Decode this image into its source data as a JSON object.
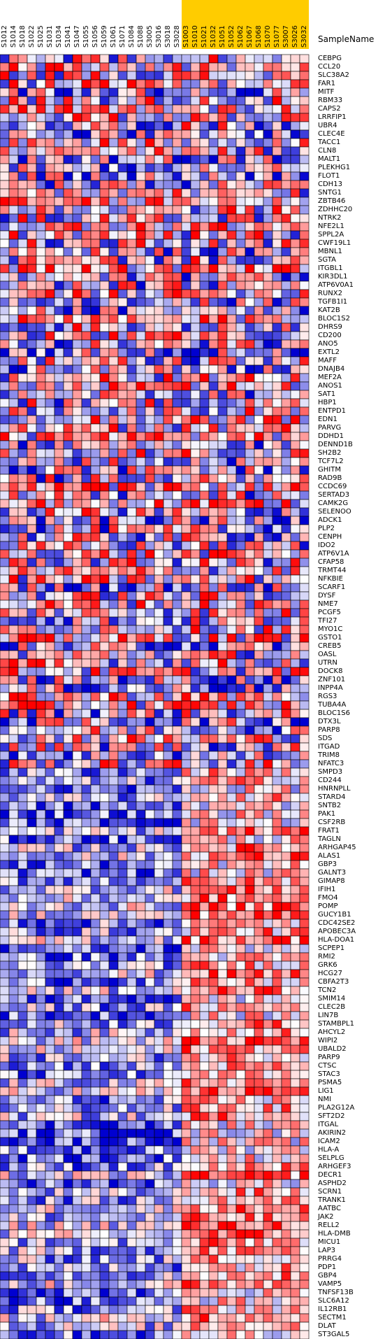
{
  "header_label": "SampleName",
  "colors": {
    "low": "#0000d0",
    "mid": "#ffffff",
    "high": "#ff0000",
    "highlight_col_bg": "#ffcc00",
    "grid": "#000000"
  },
  "chart_data": {
    "type": "heatmap",
    "columns": [
      {
        "name": "S1012",
        "group": "A"
      },
      {
        "name": "S1014",
        "group": "A"
      },
      {
        "name": "S1018",
        "group": "A"
      },
      {
        "name": "S1022",
        "group": "A"
      },
      {
        "name": "S1025",
        "group": "A"
      },
      {
        "name": "S1031",
        "group": "A"
      },
      {
        "name": "S1034",
        "group": "A"
      },
      {
        "name": "S1041",
        "group": "A"
      },
      {
        "name": "S1047",
        "group": "A"
      },
      {
        "name": "S1055",
        "group": "A"
      },
      {
        "name": "S1056",
        "group": "A"
      },
      {
        "name": "S1059",
        "group": "A"
      },
      {
        "name": "S1061",
        "group": "A"
      },
      {
        "name": "S1071",
        "group": "A"
      },
      {
        "name": "S1084",
        "group": "A"
      },
      {
        "name": "S1088",
        "group": "A"
      },
      {
        "name": "S3005",
        "group": "A"
      },
      {
        "name": "S3016",
        "group": "A"
      },
      {
        "name": "S3018",
        "group": "A"
      },
      {
        "name": "S3028",
        "group": "A"
      },
      {
        "name": "S1003",
        "group": "B"
      },
      {
        "name": "S1010",
        "group": "B"
      },
      {
        "name": "S1021",
        "group": "B"
      },
      {
        "name": "S1032",
        "group": "B"
      },
      {
        "name": "S1051",
        "group": "B"
      },
      {
        "name": "S1052",
        "group": "B"
      },
      {
        "name": "S1062",
        "group": "B"
      },
      {
        "name": "S1067",
        "group": "B"
      },
      {
        "name": "S1068",
        "group": "B"
      },
      {
        "name": "S1070",
        "group": "B"
      },
      {
        "name": "S1077",
        "group": "B"
      },
      {
        "name": "S3007",
        "group": "B"
      },
      {
        "name": "S3026",
        "group": "B"
      },
      {
        "name": "S3032",
        "group": "B"
      }
    ],
    "rows": [
      "CEBPG",
      "CCL20",
      "SLC38A2",
      "FAR1",
      "MITF",
      "RBM33",
      "CAPS2",
      "LRRFIP1",
      "UBR4",
      "CLEC4E",
      "TACC1",
      "CLN8",
      "MALT1",
      "PLEKHG1",
      "FLOT1",
      "CDH13",
      "SNTG1",
      "ZBTB46",
      "ZDHHC20",
      "NTRK2",
      "NFE2L1",
      "SPPL2A",
      "CWF19L1",
      "MBNL1",
      "SGTA",
      "ITGBL1",
      "KIR3DL1",
      "ATP6V0A1",
      "RUNX2",
      "TGFB1I1",
      "KAT2B",
      "BLOC1S2",
      "DHRS9",
      "CD200",
      "ANO5",
      "EXTL2",
      "MAFF",
      "DNAJB4",
      "MEF2A",
      "ANOS1",
      "SAT1",
      "HBP1",
      "ENTPD1",
      "EDN1",
      "PARVG",
      "DDHD1",
      "DENND1B",
      "SH2B2",
      "TCF7L2",
      "GHITM",
      "RAD9B",
      "CCDC69",
      "SERTAD3",
      "CAMK2G",
      "SELENOO",
      "ADCK1",
      "PLP2",
      "CENPH",
      "IDO2",
      "ATP6V1A",
      "CFAP58",
      "TRMT44",
      "NFKBIE",
      "SCARF1",
      "DYSF",
      "NME7",
      "PCGF5",
      "TFI27",
      "MYO1C",
      "GSTO1",
      "CREB5",
      "OASL",
      "UTRN",
      "DOCK8",
      "ZNF101",
      "INPP4A",
      "RGS3",
      "TUBA4A",
      "BLOC1S6",
      "DTX3L",
      "PARP8",
      "SDS",
      "ITGAD",
      "TRIM8",
      "NFATC3",
      "SMPD3",
      "CD244",
      "HNRNPLL",
      "STARD4",
      "SNTB2",
      "PAK1",
      "CSF2RB",
      "FRAT1",
      "TAGLN",
      "ARHGAP45",
      "ALAS1",
      "GBP3",
      "GALNT3",
      "GIMAP8",
      "IFIH1",
      "FMO4",
      "POMP",
      "GUCY1B1",
      "CDC42SE2",
      "APOBEC3A",
      "HLA-DOA1",
      "SCPEP1",
      "RMI2",
      "GRK6",
      "HCG27",
      "CBFA2T3",
      "TCN2",
      "SMIM14",
      "CLEC2B",
      "LIN7B",
      "STAMBPL1",
      "AHCYL2",
      "WIPI2",
      "UBALD2",
      "PARP9",
      "CTSC",
      "STAC3",
      "PSMA5",
      "LIG1",
      "NMI",
      "PLA2G12A",
      "SFT2D2",
      "ITGAL",
      "AKIRIN2",
      "ICAM2",
      "HLA-A",
      "SELPLG",
      "ARHGEF3",
      "DECR1",
      "ASPHD2",
      "SCRN1",
      "TRANK1",
      "AATBC",
      "JAK2",
      "RELL2",
      "HLA-DMB",
      "MICU1",
      "LAP3",
      "PRRG4",
      "PDP1",
      "GBP4",
      "VAMP5",
      "TNFSF13B",
      "SLC6A12",
      "IL12RB1",
      "SECTM1",
      "DLAT",
      "ST3GAL5"
    ],
    "value_range": [
      -1,
      1
    ],
    "seed": 1914
  }
}
